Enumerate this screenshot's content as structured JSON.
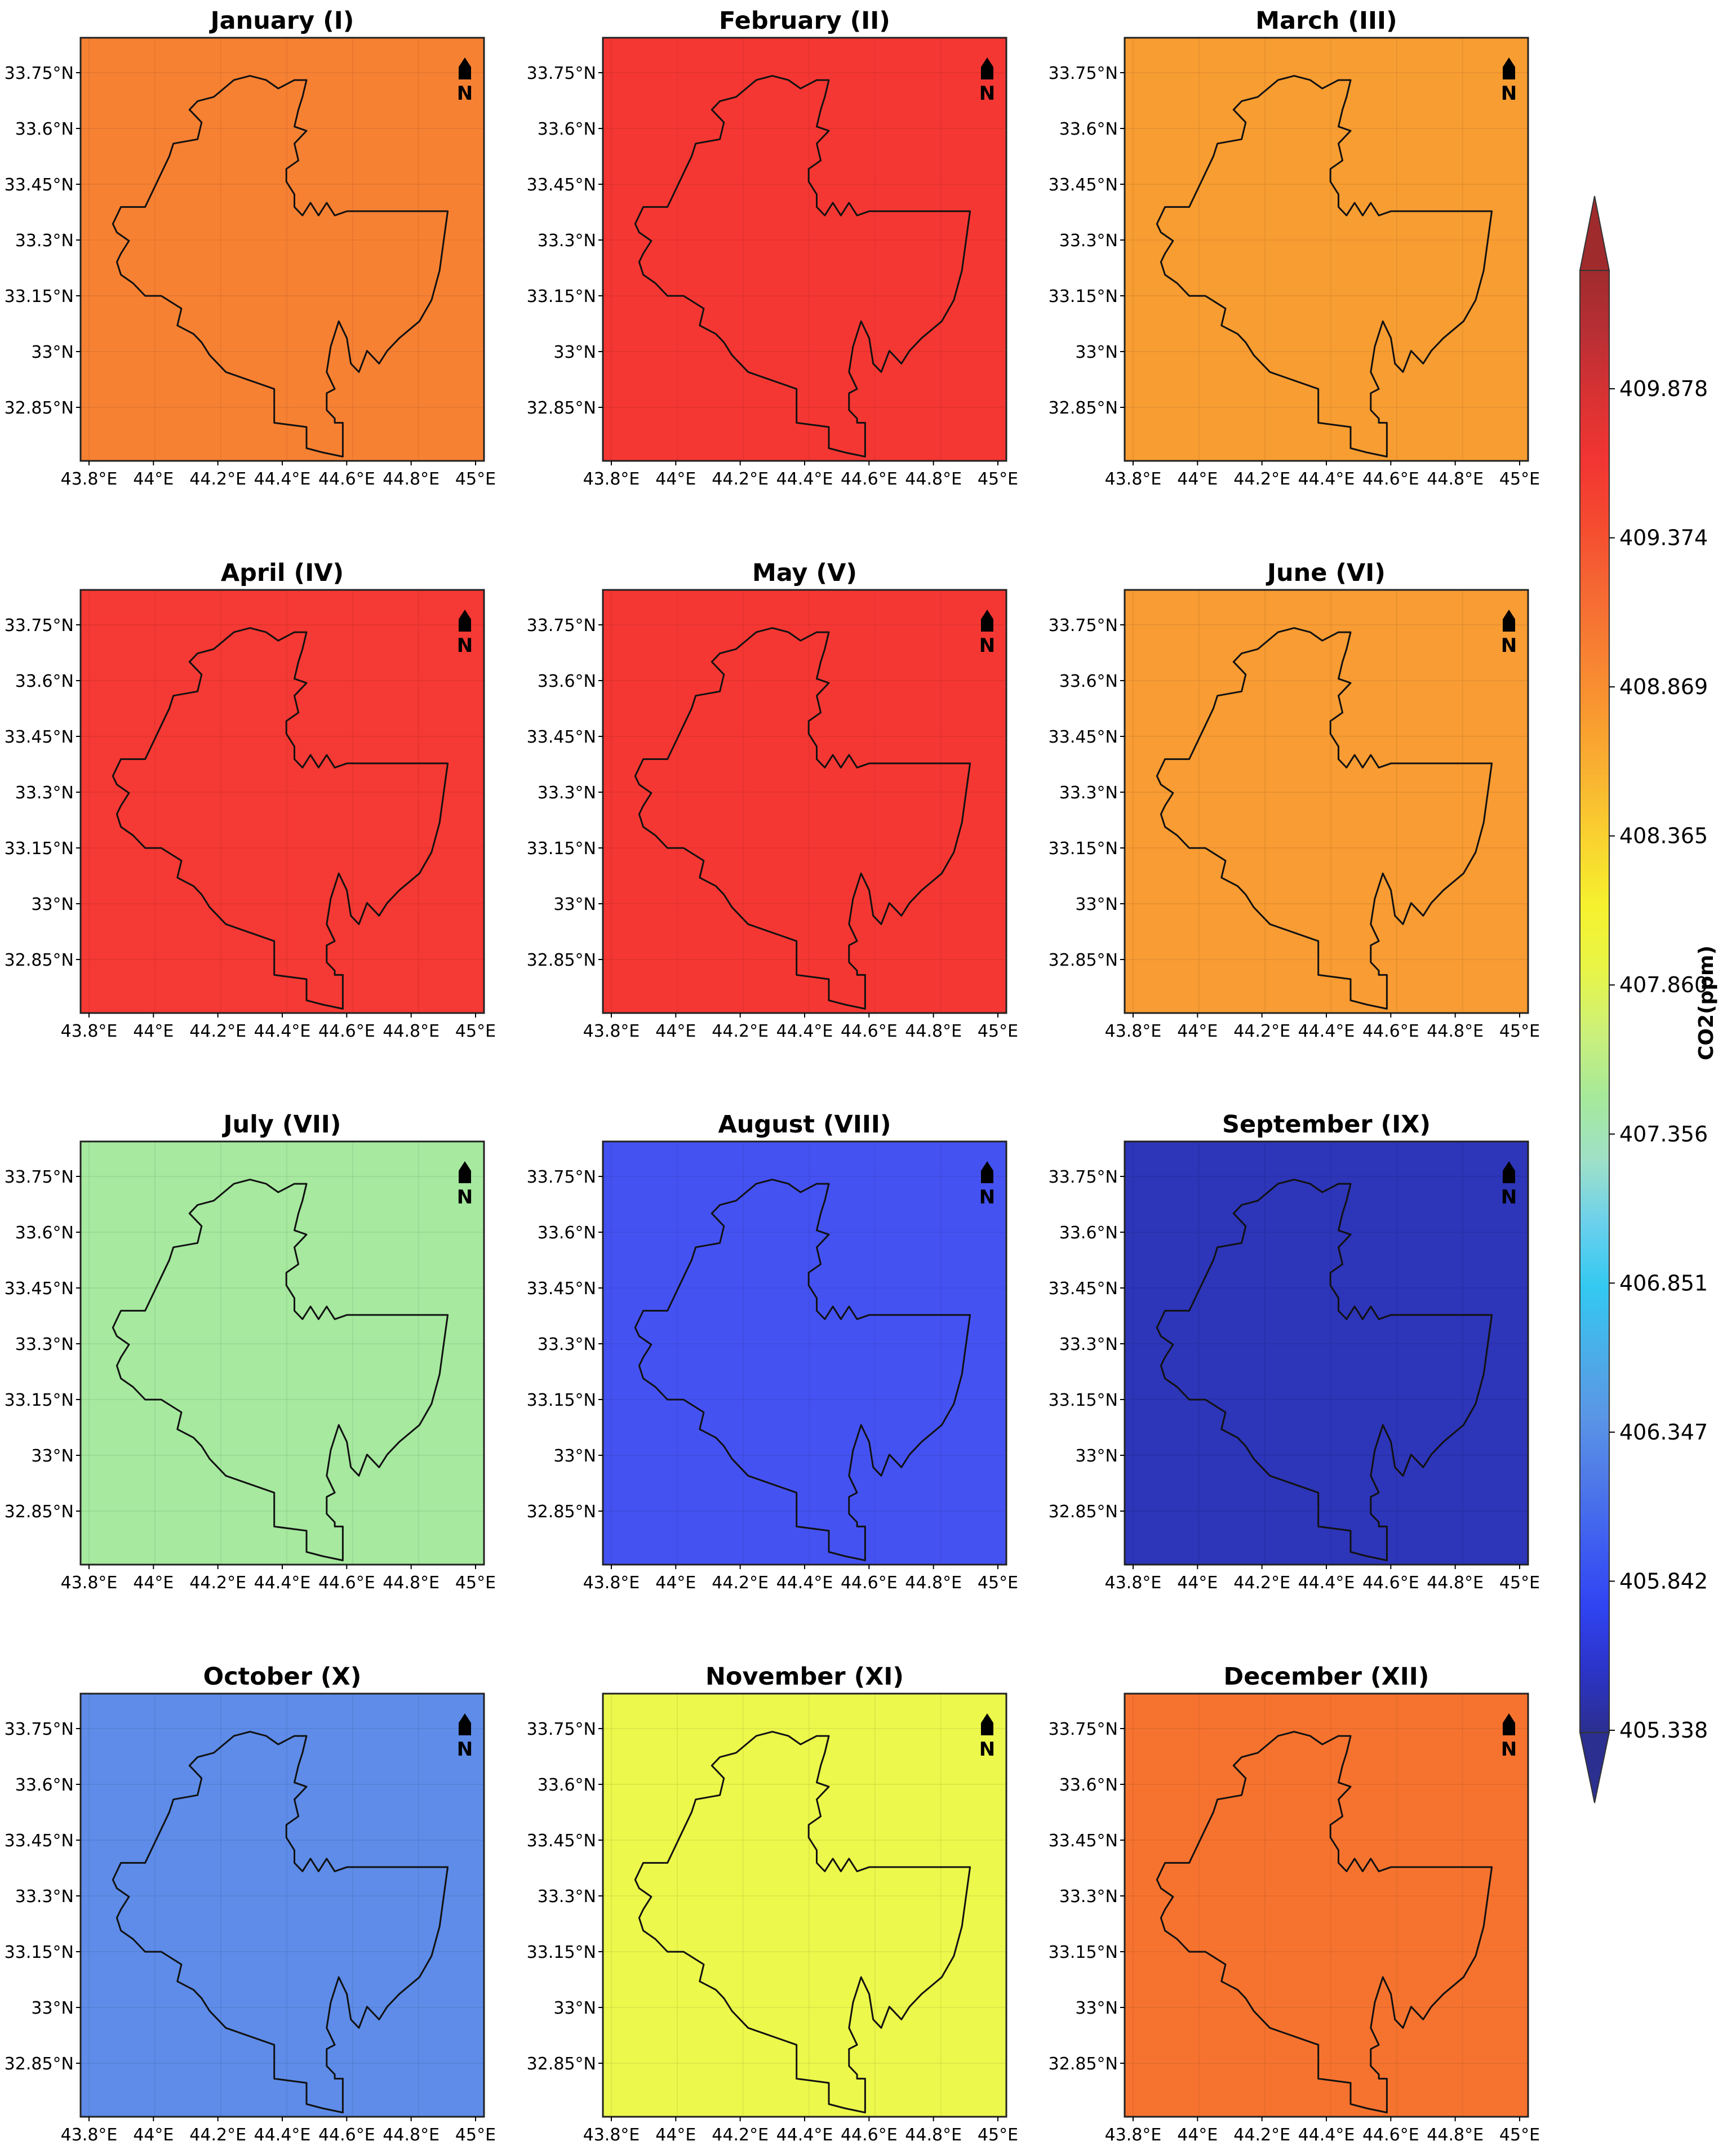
{
  "figure": {
    "colorbar": {
      "label": "CO2(ppm)",
      "ticks": [
        "409.878",
        "409.374",
        "408.869",
        "408.365",
        "407.860",
        "407.356",
        "406.851",
        "406.347",
        "405.842",
        "405.338"
      ],
      "stops": [
        "#2b2f8f",
        "#2c34c9",
        "#3044f2",
        "#3f5ff0",
        "#4f7ae8",
        "#5a96e6",
        "#4aaee8",
        "#33c9f1",
        "#6ad0ec",
        "#9fe0c8",
        "#a6e99a",
        "#cbf07a",
        "#e8f547",
        "#f6f12e",
        "#f9d42f",
        "#f9b531",
        "#f99a30",
        "#f78032",
        "#f56733",
        "#f54b30",
        "#f23532",
        "#d93233",
        "#b92f34",
        "#9f2b2d"
      ]
    },
    "x_ticks": [
      "43.8°E",
      "44°E",
      "44.2°E",
      "44.4°E",
      "44.6°E",
      "44.8°E",
      "45°E"
    ],
    "y_ticks": [
      "33.75°N",
      "33.6°N",
      "33.45°N",
      "33.3°N",
      "33.15°N",
      "33°N",
      "32.85°N"
    ],
    "north_label": "N"
  },
  "panels": [
    {
      "title": "January (I)",
      "bg": "#f78133",
      "inner": "#f5712f",
      "shape": "tail"
    },
    {
      "title": "February (II)",
      "bg": "#f53733",
      "inner": "#e13434",
      "shape": "bottom-blob"
    },
    {
      "title": "March (III)",
      "bg": "#f89d32",
      "inner": "#f68d33",
      "shape": "small-blob"
    },
    {
      "title": "April (IV)",
      "bg": "#f53934",
      "inner": "#f43734",
      "shape": "none"
    },
    {
      "title": "May (V)",
      "bg": "#f53733",
      "inner": "#e23434",
      "shape": "right-band"
    },
    {
      "title": "June (VI)",
      "bg": "#f89c33",
      "inner": "#f78b33",
      "shape": "se-band"
    },
    {
      "title": "July (VII)",
      "bg": "#a6e99f",
      "inner": "#b7ec7c",
      "shape": "se-corner"
    },
    {
      "title": "August (VIII)",
      "bg": "#4552f2",
      "inner": "#5a6feb",
      "shape": "right-band"
    },
    {
      "title": "September (IX)",
      "bg": "#2d35b8",
      "inner": "#3037cc",
      "shape": "right-band"
    },
    {
      "title": "October (X)",
      "bg": "#5e8ce8",
      "inner": "#5873e4",
      "shape": "left-band"
    },
    {
      "title": "November (XI)",
      "bg": "#ecf84c",
      "inner": "#d4f25d",
      "shape": "sw-band"
    },
    {
      "title": "December (XII)",
      "bg": "#f6732f",
      "inner": "#f5632e",
      "shape": "tail"
    }
  ]
}
